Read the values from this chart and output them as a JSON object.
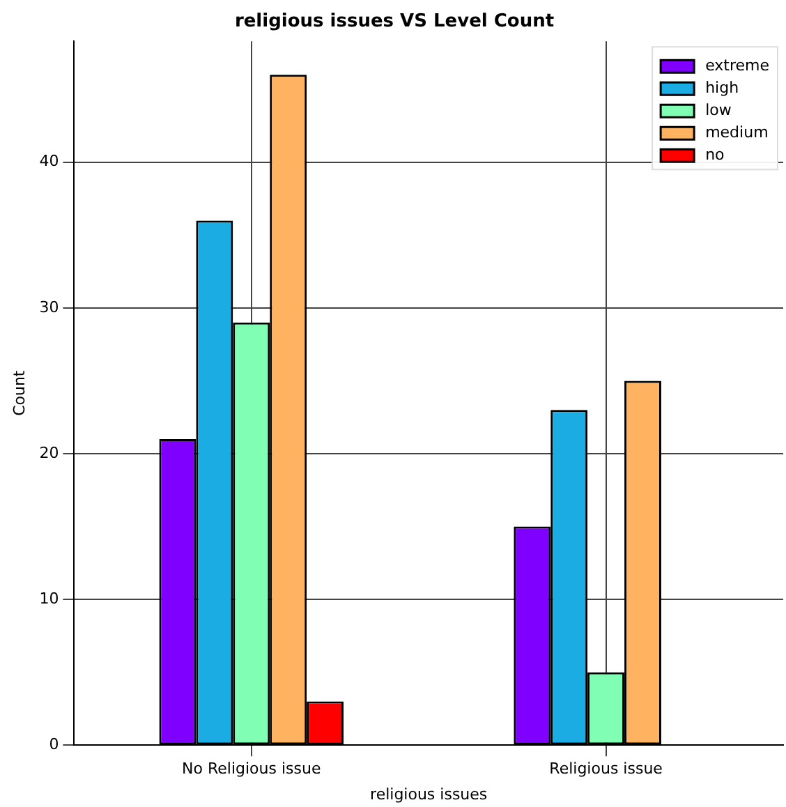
{
  "chart_data": {
    "type": "bar",
    "title": "religious issues VS Level Count",
    "xlabel": "religious issues",
    "ylabel": "Count",
    "categories": [
      "No Religious issue",
      "Religious issue"
    ],
    "series": [
      {
        "name": "extreme",
        "color": "#8000ff",
        "values": [
          21,
          15
        ]
      },
      {
        "name": "high",
        "color": "#1cace4",
        "values": [
          36,
          23
        ]
      },
      {
        "name": "low",
        "color": "#80ffb4",
        "values": [
          29,
          5
        ]
      },
      {
        "name": "medium",
        "color": "#ffb360",
        "values": [
          46,
          25
        ]
      },
      {
        "name": "no",
        "color": "#ff0000",
        "values": [
          3,
          0
        ]
      }
    ],
    "ylim": [
      0,
      48.3
    ],
    "yticks": [
      0,
      10,
      20,
      30,
      40
    ],
    "grid": true,
    "legend": "top right"
  }
}
